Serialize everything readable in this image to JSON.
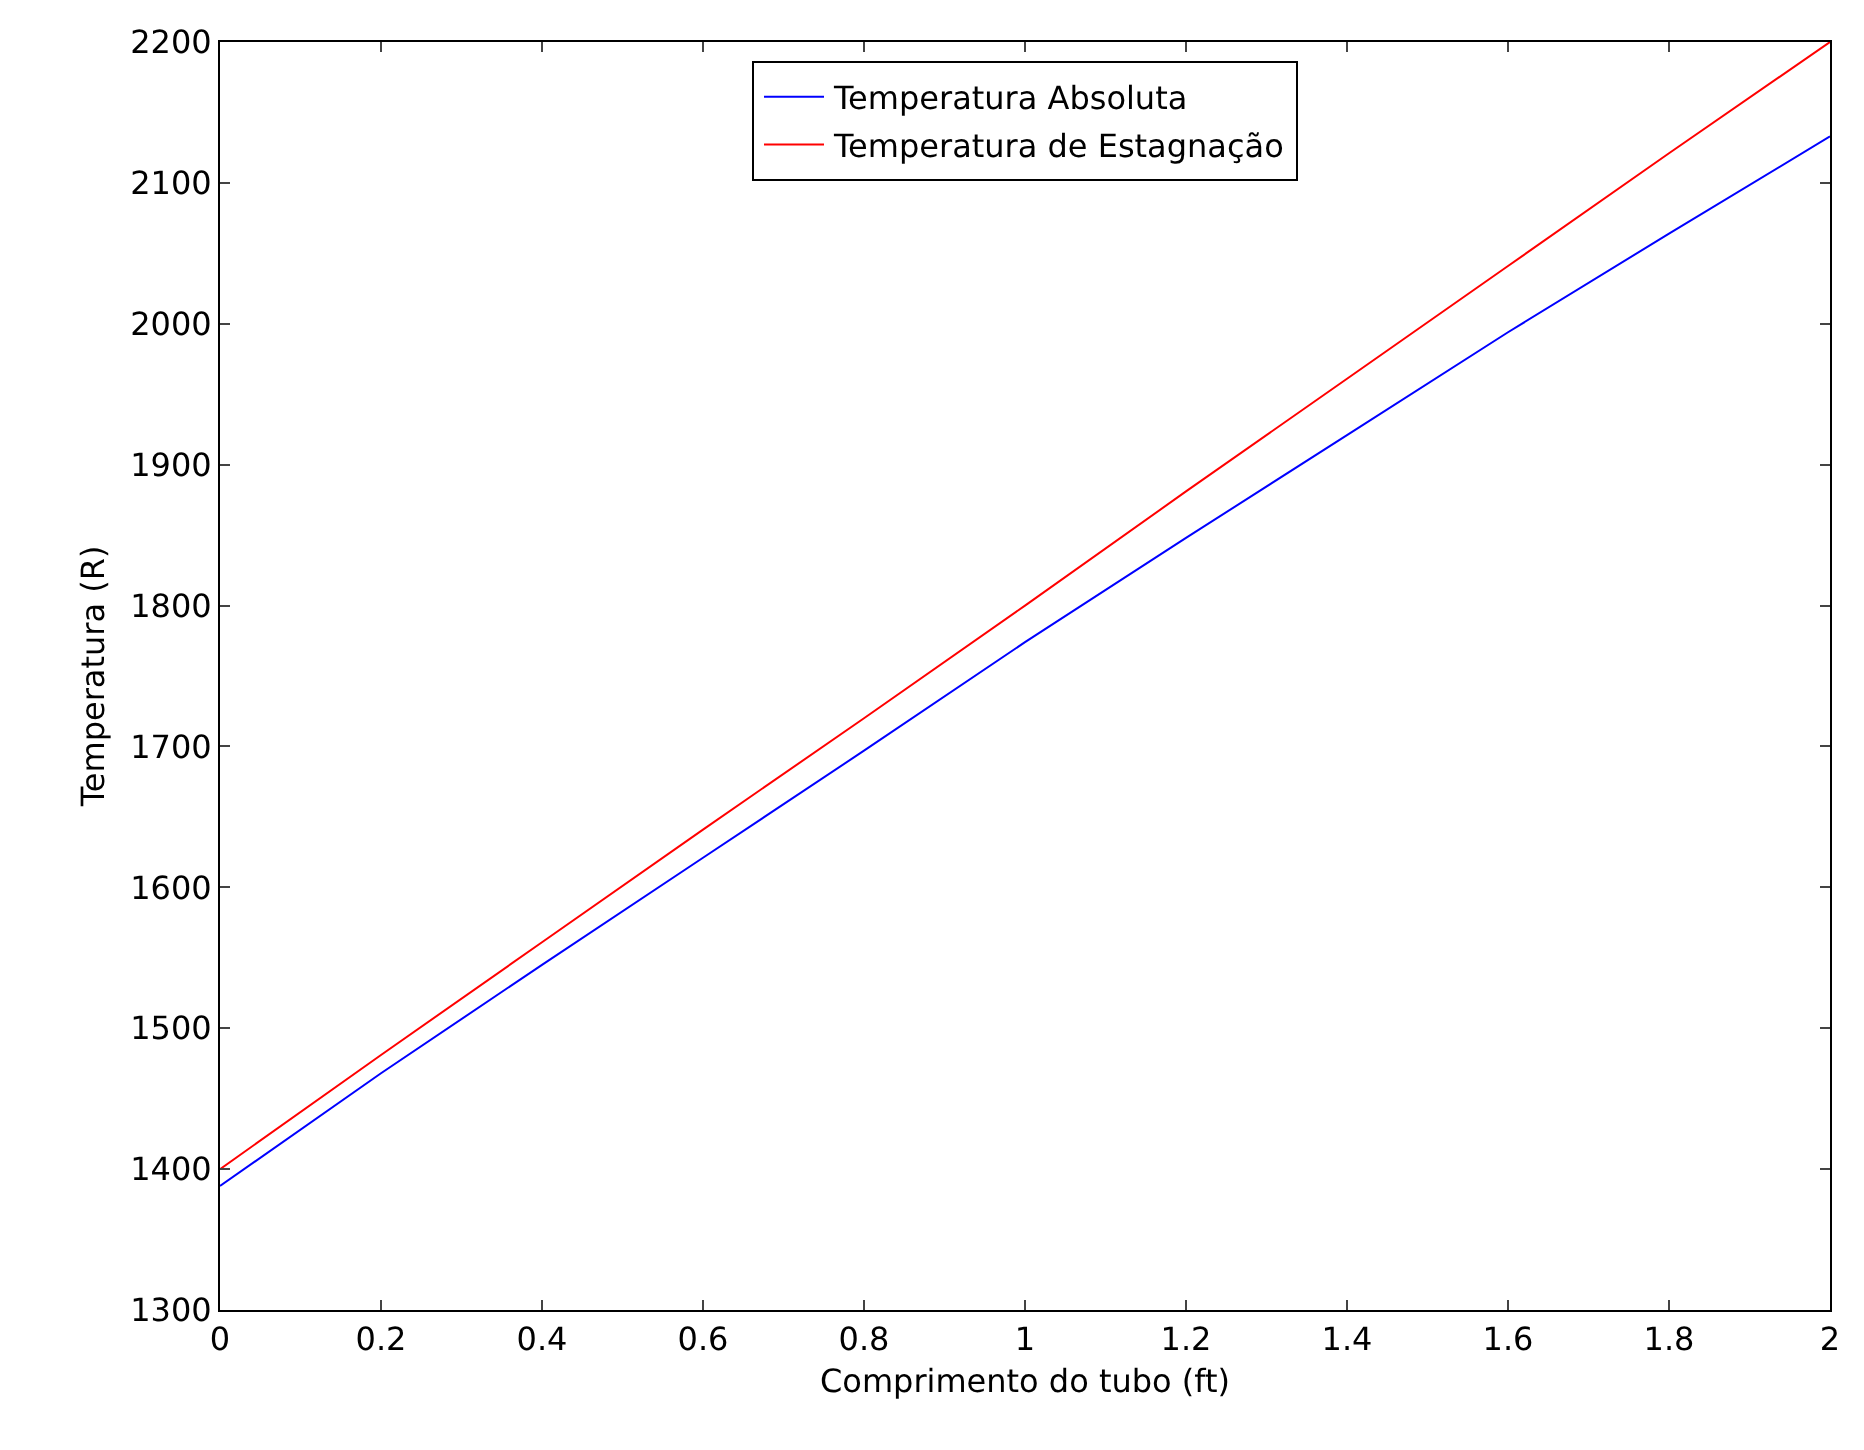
{
  "chart_data": {
    "type": "line",
    "xlabel": "Comprimento do tubo (ft)",
    "ylabel": "Temperatura (R)",
    "x": [
      0,
      0.2,
      0.4,
      0.6,
      0.8,
      1.0,
      1.2,
      1.4,
      1.6,
      1.8,
      2.0
    ],
    "series": [
      {
        "name": "Temperatura Absoluta",
        "color": "#0000ff",
        "values": [
          1388,
          1468,
          1545,
          1621,
          1697,
          1774,
          1848,
          1921,
          1994,
          2064,
          2133
        ]
      },
      {
        "name": "Temperatura de Estagnação",
        "color": "#ff0000",
        "values": [
          1400,
          1481,
          1561,
          1641,
          1720,
          1800,
          1881,
          1961,
          2041,
          2121,
          2200
        ]
      }
    ],
    "xlim": [
      0,
      2
    ],
    "xticks": [
      0,
      0.2,
      0.4,
      0.6,
      0.8,
      1,
      1.2,
      1.4,
      1.6,
      1.8,
      2
    ],
    "ylim": [
      1300,
      2200
    ],
    "yticks": [
      1300,
      1400,
      1500,
      1600,
      1700,
      1800,
      1900,
      2000,
      2100,
      2200
    ],
    "legend": "top",
    "marker": "none",
    "line_style": "solid"
  }
}
